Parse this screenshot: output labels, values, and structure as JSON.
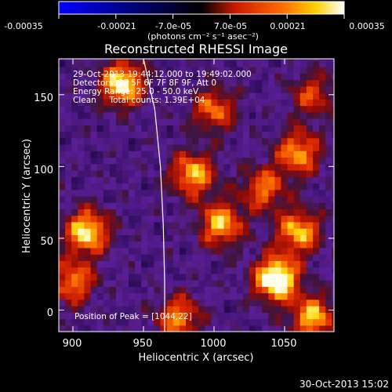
{
  "colorbar": {
    "tick_labels": [
      "-0.00035",
      "-0.00021",
      "-7.0e-05",
      "7.0e-05",
      "0.00021",
      "0.00035"
    ],
    "tick_values": [
      -0.00035,
      -0.00021,
      -7e-05,
      7e-05,
      0.00021,
      0.00035
    ],
    "unit_label": "(photons cm⁻² s⁻¹ asec⁻²)",
    "colors": [
      "#0000ff",
      "#000000",
      "#ff0000",
      "#ffff00",
      "#ffffff"
    ]
  },
  "annotations": {
    "time_range": "29-Oct-2013 19:44:12.000 to 19:49:02.000",
    "detectors": "Detectors: 3F 5F 6F 7F 8F 9F, Att 0",
    "energy": "Energy Range: 25.0 - 50.0 keV",
    "clean": "Clean     Total counts: 1.39E+04",
    "peak": "Position of Peak = [1044,22]"
  },
  "footer": {
    "timestamp": "30-Oct-2013 15:02"
  },
  "chart_data": {
    "type": "heatmap",
    "title": "Reconstructed RHESSI Image",
    "xlabel": "Heliocentric X (arcsec)",
    "ylabel": "Heliocentric Y (arcsec)",
    "xlim": [
      890,
      1085
    ],
    "ylim": [
      -15,
      175
    ],
    "x_ticks": [
      900,
      950,
      1000,
      1050
    ],
    "y_ticks": [
      0,
      50,
      100,
      150
    ],
    "x_tick_labels": [
      "900",
      "950",
      "1000",
      "1050"
    ],
    "y_tick_labels": [
      "0",
      "50",
      "100",
      "150"
    ],
    "peak": [
      1044,
      22
    ],
    "bright_sources": [
      {
        "x": 1044,
        "y": 22,
        "level": 1.0
      },
      {
        "x": 935,
        "y": 158,
        "level": 0.85
      },
      {
        "x": 910,
        "y": 55,
        "level": 0.8
      },
      {
        "x": 1060,
        "y": 110,
        "level": 0.65
      },
      {
        "x": 985,
        "y": 95,
        "level": 0.7
      },
      {
        "x": 1005,
        "y": 60,
        "level": 0.7
      },
      {
        "x": 1060,
        "y": 55,
        "level": 0.7
      },
      {
        "x": 900,
        "y": 20,
        "level": 0.6
      },
      {
        "x": 1070,
        "y": -5,
        "level": 0.7
      },
      {
        "x": 975,
        "y": -5,
        "level": 0.6
      },
      {
        "x": 1000,
        "y": 140,
        "level": 0.55
      },
      {
        "x": 1035,
        "y": 85,
        "level": 0.55
      },
      {
        "x": 1070,
        "y": 150,
        "level": 0.45
      }
    ],
    "limb_curve": [
      [
        950,
        175
      ],
      [
        958,
        140
      ],
      [
        962,
        100
      ],
      [
        964,
        60
      ],
      [
        965,
        20
      ],
      [
        965,
        -15
      ]
    ]
  }
}
